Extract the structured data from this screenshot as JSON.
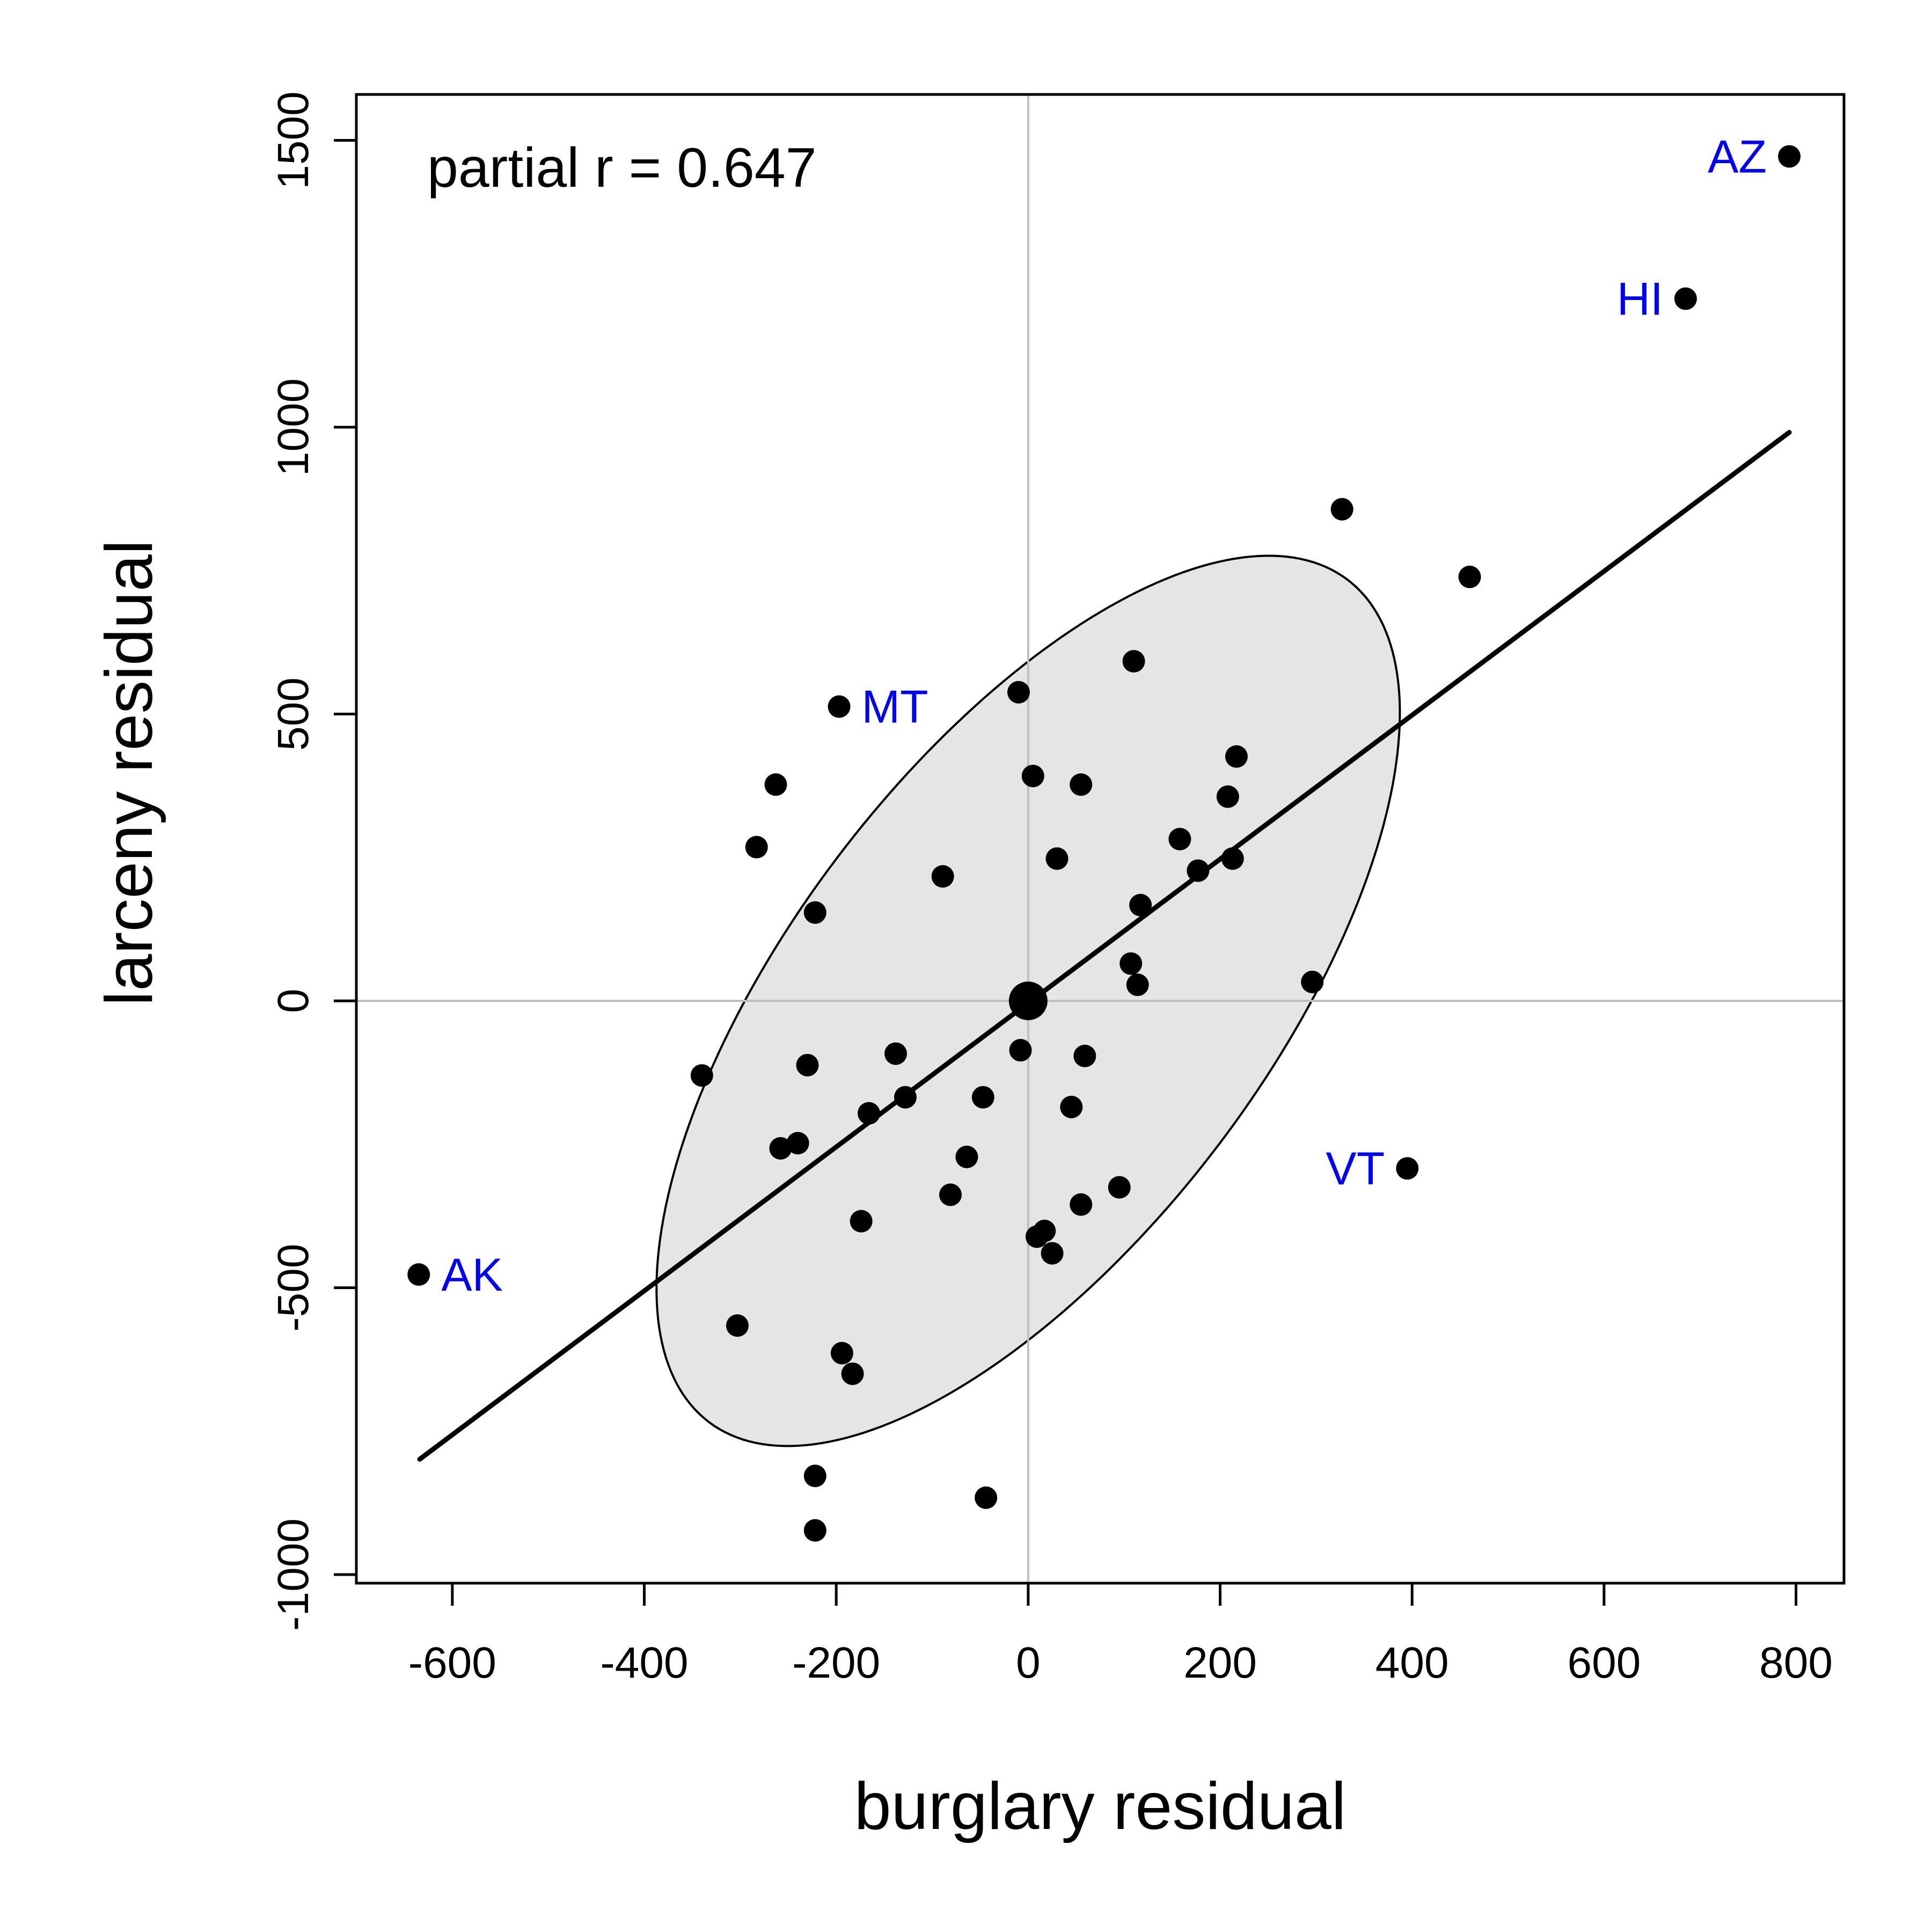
{
  "chart_data": {
    "type": "scatter",
    "title": "",
    "xlabel": "burglary residual",
    "ylabel": "larceny residual",
    "xlim": [
      -700,
      850
    ],
    "ylim": [
      -1015,
      1580
    ],
    "xticks": [
      -600,
      -400,
      -200,
      0,
      200,
      400,
      600,
      800
    ],
    "yticks": [
      -1000,
      -500,
      0,
      500,
      1000,
      1500
    ],
    "xtick_labels": [
      "-600",
      "-400",
      "-200",
      "0",
      "200",
      "400",
      "600",
      "800"
    ],
    "ytick_labels": [
      "-1000",
      "-500",
      "0",
      "500",
      "1000",
      "1500"
    ],
    "grid": false,
    "reference_lines": {
      "x": 0,
      "y": 0,
      "color": "#bebebe"
    },
    "annotation": "partial r = 0.647",
    "regression_line": {
      "x": [
        -634,
        793
      ],
      "y": [
        -799,
        991
      ],
      "color": "#000000"
    },
    "centroid": {
      "x": 0,
      "y": 0
    },
    "ellipse": {
      "center": [
        0,
        0
      ],
      "sd_x": 268,
      "sd_y": 537,
      "r": 0.647,
      "fill": "#e5e5e5"
    },
    "point_label_color": "#0000ff",
    "points": [
      {
        "x": 793,
        "y": 1472,
        "label": "AZ"
      },
      {
        "x": 685,
        "y": 1224,
        "label": "HI"
      },
      {
        "x": -197,
        "y": 513,
        "label": "MT"
      },
      {
        "x": 395,
        "y": -292,
        "label": "VT"
      },
      {
        "x": -635,
        "y": -477,
        "label": "AK"
      },
      {
        "x": 327,
        "y": 857
      },
      {
        "x": 460,
        "y": 739
      },
      {
        "x": 110,
        "y": 592
      },
      {
        "x": -10,
        "y": 538
      },
      {
        "x": 5,
        "y": 392
      },
      {
        "x": 55,
        "y": 377
      },
      {
        "x": -263,
        "y": 377
      },
      {
        "x": 217,
        "y": 426
      },
      {
        "x": 208,
        "y": 356
      },
      {
        "x": -283,
        "y": 268
      },
      {
        "x": 158,
        "y": 282
      },
      {
        "x": 30,
        "y": 248
      },
      {
        "x": 213,
        "y": 248
      },
      {
        "x": 177,
        "y": 227
      },
      {
        "x": -89,
        "y": 217
      },
      {
        "x": 117,
        "y": 167
      },
      {
        "x": -222,
        "y": 154
      },
      {
        "x": 107,
        "y": 65
      },
      {
        "x": 114,
        "y": 28
      },
      {
        "x": 296,
        "y": 33
      },
      {
        "x": -138,
        "y": -92
      },
      {
        "x": -8,
        "y": -86
      },
      {
        "x": 59,
        "y": -96
      },
      {
        "x": -230,
        "y": -112
      },
      {
        "x": -340,
        "y": -130
      },
      {
        "x": -128,
        "y": -168
      },
      {
        "x": -47,
        "y": -168
      },
      {
        "x": 45,
        "y": -185
      },
      {
        "x": -166,
        "y": -196
      },
      {
        "x": -240,
        "y": -248
      },
      {
        "x": -258,
        "y": -257
      },
      {
        "x": -64,
        "y": -272
      },
      {
        "x": -81,
        "y": -338
      },
      {
        "x": 95,
        "y": -325
      },
      {
        "x": 55,
        "y": -355
      },
      {
        "x": -174,
        "y": -384
      },
      {
        "x": 17,
        "y": -401
      },
      {
        "x": 9,
        "y": -411
      },
      {
        "x": 25,
        "y": -440
      },
      {
        "x": -303,
        "y": -566
      },
      {
        "x": -194,
        "y": -614
      },
      {
        "x": -183,
        "y": -650
      },
      {
        "x": -222,
        "y": -828
      },
      {
        "x": -44,
        "y": -866
      },
      {
        "x": -222,
        "y": -923
      }
    ]
  }
}
